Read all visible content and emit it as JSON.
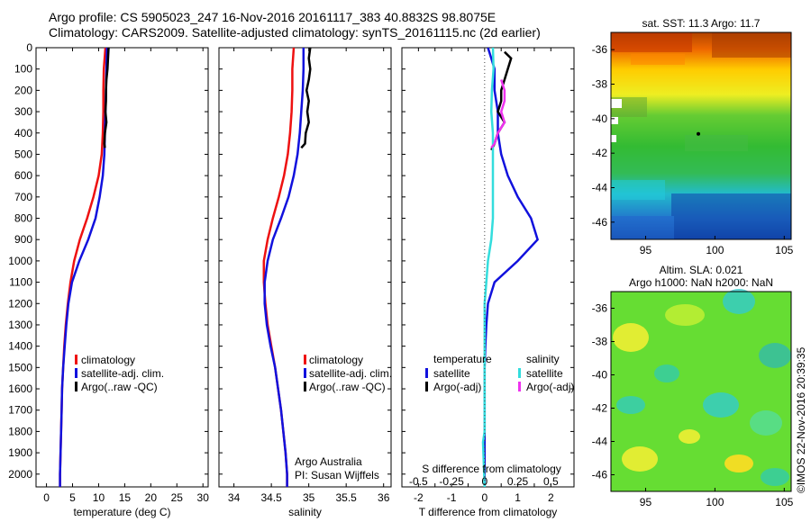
{
  "title_line1": "Argo profile: CS 5905023_247 16-Nov-2016 20161117_383 40.8832S 98.8075E",
  "title_line2": "Climatology: CARS2009. Satellite-adjusted climatology: synTS_20161115.nc (2d earlier)",
  "stamp": "©IMOS 22-Nov-2016 20:39:35",
  "colors": {
    "climatology": "#ee1111",
    "satellite": "#1111dd",
    "argo": "#000000",
    "sal_satellite": "#33dddd",
    "sal_argo": "#ee33ee",
    "zero_line": "#444444"
  },
  "chart_data": [
    {
      "type": "line",
      "xlabel": "temperature (deg C)",
      "xlim": [
        -2,
        31
      ],
      "ylim": [
        2060,
        0
      ],
      "xticks": [
        0,
        5,
        10,
        15,
        20,
        25,
        30
      ],
      "yticks": [
        0,
        100,
        200,
        300,
        400,
        500,
        600,
        700,
        800,
        900,
        1000,
        1100,
        1200,
        1300,
        1400,
        1500,
        1600,
        1700,
        1800,
        1900,
        2000
      ],
      "legend": [
        "climatology",
        "satellite-adj. clim.",
        "Argo(..raw -QC)"
      ],
      "legend_position": "lower-right",
      "series": [
        {
          "name": "climatology",
          "color_key": "climatology",
          "points": [
            [
              11.3,
              0
            ],
            [
              11,
              100
            ],
            [
              10.9,
              200
            ],
            [
              10.9,
              300
            ],
            [
              10.8,
              400
            ],
            [
              10.6,
              500
            ],
            [
              10,
              600
            ],
            [
              9,
              700
            ],
            [
              7.8,
              800
            ],
            [
              6.4,
              900
            ],
            [
              5.3,
              1000
            ],
            [
              4.6,
              1100
            ],
            [
              4.1,
              1200
            ],
            [
              3.7,
              1300
            ],
            [
              3.4,
              1400
            ],
            [
              3.2,
              1500
            ],
            [
              3,
              1600
            ],
            [
              2.9,
              1700
            ],
            [
              2.8,
              1800
            ],
            [
              2.7,
              1900
            ],
            [
              2.6,
              2000
            ],
            [
              2.6,
              2060
            ]
          ]
        },
        {
          "name": "satellite-adj. clim.",
          "color_key": "satellite",
          "points": [
            [
              11.6,
              0
            ],
            [
              11.5,
              100
            ],
            [
              11.4,
              200
            ],
            [
              11.3,
              300
            ],
            [
              11.2,
              400
            ],
            [
              11.1,
              500
            ],
            [
              10.8,
              600
            ],
            [
              10.2,
              700
            ],
            [
              9.4,
              800
            ],
            [
              8,
              900
            ],
            [
              6.3,
              1000
            ],
            [
              4.9,
              1100
            ],
            [
              4.2,
              1200
            ],
            [
              3.8,
              1300
            ],
            [
              3.5,
              1400
            ],
            [
              3.2,
              1500
            ],
            [
              3,
              1600
            ],
            [
              2.9,
              1700
            ],
            [
              2.8,
              1800
            ],
            [
              2.7,
              1900
            ],
            [
              2.6,
              2000
            ],
            [
              2.6,
              2060
            ]
          ]
        },
        {
          "name": "Argo(..raw -QC)",
          "color_key": "argo",
          "points": [
            [
              11.9,
              0
            ],
            [
              11.8,
              50
            ],
            [
              11.7,
              100
            ],
            [
              11.5,
              150
            ],
            [
              11.4,
              200
            ],
            [
              11.4,
              250
            ],
            [
              11.3,
              300
            ],
            [
              11.5,
              350
            ],
            [
              11.2,
              400
            ],
            [
              11.1,
              450
            ],
            [
              11.2,
              470
            ]
          ]
        }
      ]
    },
    {
      "type": "line",
      "xlabel": "salinity",
      "xlim": [
        33.8,
        36.1
      ],
      "ylim": [
        2060,
        0
      ],
      "xticks": [
        34,
        34.5,
        35,
        35.5,
        36
      ],
      "xtick_labels": [
        "34",
        "34.5",
        "35",
        "35.5",
        "36"
      ],
      "legend": [
        "climatology",
        "satellite-adj. clim.",
        "Argo(..raw -QC)"
      ],
      "legend_position": "lower-right",
      "annotation": [
        "Argo Australia",
        "PI: Susan Wijffels"
      ],
      "series": [
        {
          "name": "climatology",
          "color_key": "climatology",
          "points": [
            [
              34.8,
              0
            ],
            [
              34.78,
              100
            ],
            [
              34.78,
              200
            ],
            [
              34.77,
              300
            ],
            [
              34.75,
              400
            ],
            [
              34.72,
              500
            ],
            [
              34.67,
              600
            ],
            [
              34.6,
              700
            ],
            [
              34.52,
              800
            ],
            [
              34.45,
              900
            ],
            [
              34.4,
              1000
            ],
            [
              34.4,
              1100
            ],
            [
              34.42,
              1200
            ],
            [
              34.45,
              1300
            ],
            [
              34.5,
              1400
            ],
            [
              34.55,
              1500
            ],
            [
              34.59,
              1600
            ],
            [
              34.63,
              1700
            ],
            [
              34.66,
              1800
            ],
            [
              34.69,
              1900
            ],
            [
              34.71,
              2000
            ],
            [
              34.71,
              2060
            ]
          ]
        },
        {
          "name": "satellite-adj. clim.",
          "color_key": "satellite",
          "points": [
            [
              34.93,
              0
            ],
            [
              34.93,
              100
            ],
            [
              34.92,
              200
            ],
            [
              34.9,
              300
            ],
            [
              34.88,
              400
            ],
            [
              34.85,
              500
            ],
            [
              34.8,
              600
            ],
            [
              34.73,
              700
            ],
            [
              34.63,
              800
            ],
            [
              34.52,
              900
            ],
            [
              34.45,
              1000
            ],
            [
              34.41,
              1100
            ],
            [
              34.41,
              1200
            ],
            [
              34.44,
              1300
            ],
            [
              34.49,
              1400
            ],
            [
              34.55,
              1500
            ],
            [
              34.59,
              1600
            ],
            [
              34.63,
              1700
            ],
            [
              34.66,
              1800
            ],
            [
              34.69,
              1900
            ],
            [
              34.71,
              2000
            ],
            [
              34.71,
              2060
            ]
          ]
        },
        {
          "name": "Argo(..raw -QC)",
          "color_key": "argo",
          "points": [
            [
              35.02,
              0
            ],
            [
              35.0,
              50
            ],
            [
              35.02,
              100
            ],
            [
              35.0,
              150
            ],
            [
              34.97,
              200
            ],
            [
              35.0,
              250
            ],
            [
              34.98,
              300
            ],
            [
              35.0,
              350
            ],
            [
              34.96,
              400
            ],
            [
              34.95,
              450
            ],
            [
              34.9,
              470
            ]
          ]
        }
      ]
    },
    {
      "type": "line",
      "xlabel": "T difference from climatology",
      "xlabel_top": "S difference from climatology",
      "xlim": [
        -2.5,
        2.7
      ],
      "ylim": [
        2060,
        0
      ],
      "xticks": [
        -2,
        -1.5,
        -1,
        -0.5,
        0,
        0.5,
        1,
        1.5,
        2
      ],
      "xtick_labels": [
        "-2",
        "",
        "-1",
        "",
        "0",
        "",
        "1",
        "",
        "2"
      ],
      "s_xticks": [
        -0.5,
        -0.25,
        0,
        0.25,
        0.5
      ],
      "s_xtick_labels": [
        "-0.5",
        "-0.25",
        "0",
        "0.25",
        "0.5"
      ],
      "s_xtick_positions_T": [
        -2,
        -1,
        0,
        1,
        2
      ],
      "legend_headers": [
        "temperature",
        "salinity"
      ],
      "legend_left": [
        "satellite",
        "Argo(-adj)"
      ],
      "legend_right": [
        "satellite",
        "Argo(-adj)"
      ],
      "series": [
        {
          "name": "satellite",
          "group": "temperature",
          "color_key": "satellite",
          "points": [
            [
              0.1,
              0
            ],
            [
              0.2,
              50
            ],
            [
              0.3,
              100
            ],
            [
              0.3,
              200
            ],
            [
              0.4,
              300
            ],
            [
              0.4,
              400
            ],
            [
              0.5,
              500
            ],
            [
              0.7,
              600
            ],
            [
              1,
              700
            ],
            [
              1.4,
              800
            ],
            [
              1.6,
              900
            ],
            [
              1,
              1000
            ],
            [
              0.3,
              1100
            ],
            [
              0.1,
              1200
            ],
            [
              0.05,
              1300
            ],
            [
              0.02,
              1400
            ],
            [
              0,
              1500
            ],
            [
              0,
              1600
            ],
            [
              0,
              1800
            ],
            [
              0,
              2000
            ],
            [
              0,
              2060
            ]
          ]
        },
        {
          "name": "Argo(-adj)",
          "group": "temperature",
          "color_key": "argo",
          "points": [
            [
              0.6,
              20
            ],
            [
              0.8,
              50
            ],
            [
              0.7,
              100
            ],
            [
              0.6,
              150
            ],
            [
              0.5,
              200
            ],
            [
              0.5,
              250
            ],
            [
              0.4,
              300
            ],
            [
              0.6,
              350
            ],
            [
              0.4,
              400
            ],
            [
              0.3,
              450
            ],
            [
              0.2,
              480
            ]
          ]
        },
        {
          "name": "satellite",
          "group": "salinity",
          "color_key": "sal_satellite",
          "points": [
            [
              0.25,
              0
            ],
            [
              0.27,
              100
            ],
            [
              0.22,
              200
            ],
            [
              0.2,
              300
            ],
            [
              0.25,
              400
            ],
            [
              0.25,
              500
            ],
            [
              0.25,
              600
            ],
            [
              0.25,
              700
            ],
            [
              0.25,
              800
            ],
            [
              0.2,
              900
            ],
            [
              0.1,
              1000
            ],
            [
              0.05,
              1100
            ],
            [
              0,
              1200
            ],
            [
              0,
              1400
            ],
            [
              0,
              1600
            ],
            [
              0,
              1800
            ],
            [
              -0.05,
              1850
            ],
            [
              0,
              2060
            ]
          ]
        },
        {
          "name": "Argo(-adj)",
          "group": "salinity",
          "color_key": "sal_argo",
          "points": [
            [
              0.5,
              150
            ],
            [
              0.6,
              200
            ],
            [
              0.6,
              250
            ],
            [
              0.5,
              300
            ],
            [
              0.6,
              350
            ],
            [
              0.4,
              400
            ],
            [
              0.3,
              450
            ],
            [
              0.2,
              470
            ]
          ]
        }
      ]
    },
    {
      "type": "heatmap",
      "title": "sat. SST: 11.3 Argo: 11.7",
      "xlim": [
        92.5,
        105.5
      ],
      "ylim": [
        -47,
        -35
      ],
      "xticks": [
        95,
        100,
        105
      ],
      "yticks": [
        -36,
        -38,
        -40,
        -42,
        -44,
        -46
      ],
      "marker": {
        "lon": 98.8075,
        "lat": -40.8832
      }
    },
    {
      "type": "heatmap",
      "title_lines": [
        "Altim. SLA: 0.021",
        "Argo h1000: NaN h2000: NaN"
      ],
      "xlim": [
        92.5,
        105.5
      ],
      "ylim": [
        -47,
        -35
      ],
      "xticks": [
        95,
        100,
        105
      ],
      "yticks": [
        -36,
        -38,
        -40,
        -42,
        -44,
        -46
      ]
    }
  ]
}
